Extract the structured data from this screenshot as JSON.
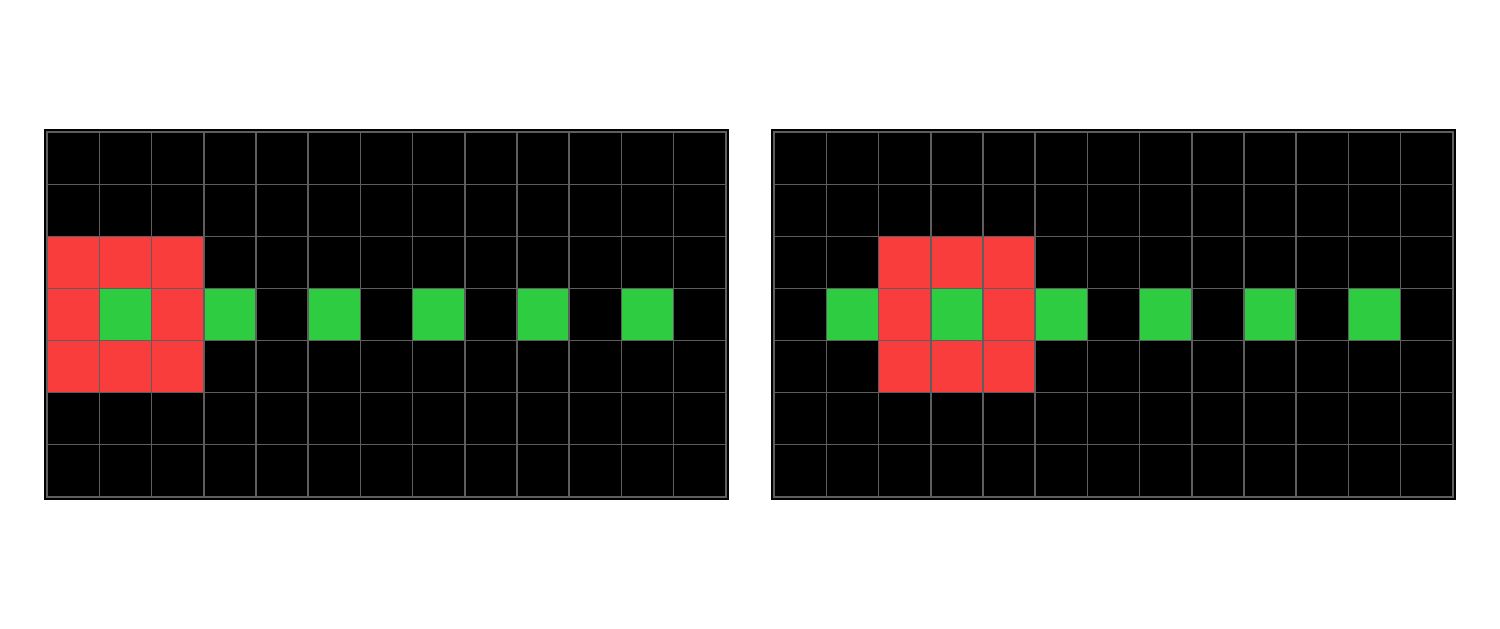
{
  "palette": {
    "0": "#000000",
    "2": "#f93c3c",
    "3": "#2ecc40"
  },
  "grid_line_color": "#5e5e5e",
  "grids": [
    {
      "name": "input",
      "rows": 7,
      "cols": 13,
      "cells": [
        [
          0,
          0,
          0,
          0,
          0,
          0,
          0,
          0,
          0,
          0,
          0,
          0,
          0
        ],
        [
          0,
          0,
          0,
          0,
          0,
          0,
          0,
          0,
          0,
          0,
          0,
          0,
          0
        ],
        [
          2,
          2,
          2,
          0,
          0,
          0,
          0,
          0,
          0,
          0,
          0,
          0,
          0
        ],
        [
          2,
          3,
          2,
          3,
          0,
          3,
          0,
          3,
          0,
          3,
          0,
          3,
          0
        ],
        [
          2,
          2,
          2,
          0,
          0,
          0,
          0,
          0,
          0,
          0,
          0,
          0,
          0
        ],
        [
          0,
          0,
          0,
          0,
          0,
          0,
          0,
          0,
          0,
          0,
          0,
          0,
          0
        ],
        [
          0,
          0,
          0,
          0,
          0,
          0,
          0,
          0,
          0,
          0,
          0,
          0,
          0
        ]
      ]
    },
    {
      "name": "output",
      "rows": 7,
      "cols": 13,
      "cells": [
        [
          0,
          0,
          0,
          0,
          0,
          0,
          0,
          0,
          0,
          0,
          0,
          0,
          0
        ],
        [
          0,
          0,
          0,
          0,
          0,
          0,
          0,
          0,
          0,
          0,
          0,
          0,
          0
        ],
        [
          0,
          0,
          2,
          2,
          2,
          0,
          0,
          0,
          0,
          0,
          0,
          0,
          0
        ],
        [
          0,
          3,
          2,
          3,
          2,
          3,
          0,
          3,
          0,
          3,
          0,
          3,
          0
        ],
        [
          0,
          0,
          2,
          2,
          2,
          0,
          0,
          0,
          0,
          0,
          0,
          0,
          0
        ],
        [
          0,
          0,
          0,
          0,
          0,
          0,
          0,
          0,
          0,
          0,
          0,
          0,
          0
        ],
        [
          0,
          0,
          0,
          0,
          0,
          0,
          0,
          0,
          0,
          0,
          0,
          0,
          0
        ]
      ]
    }
  ]
}
